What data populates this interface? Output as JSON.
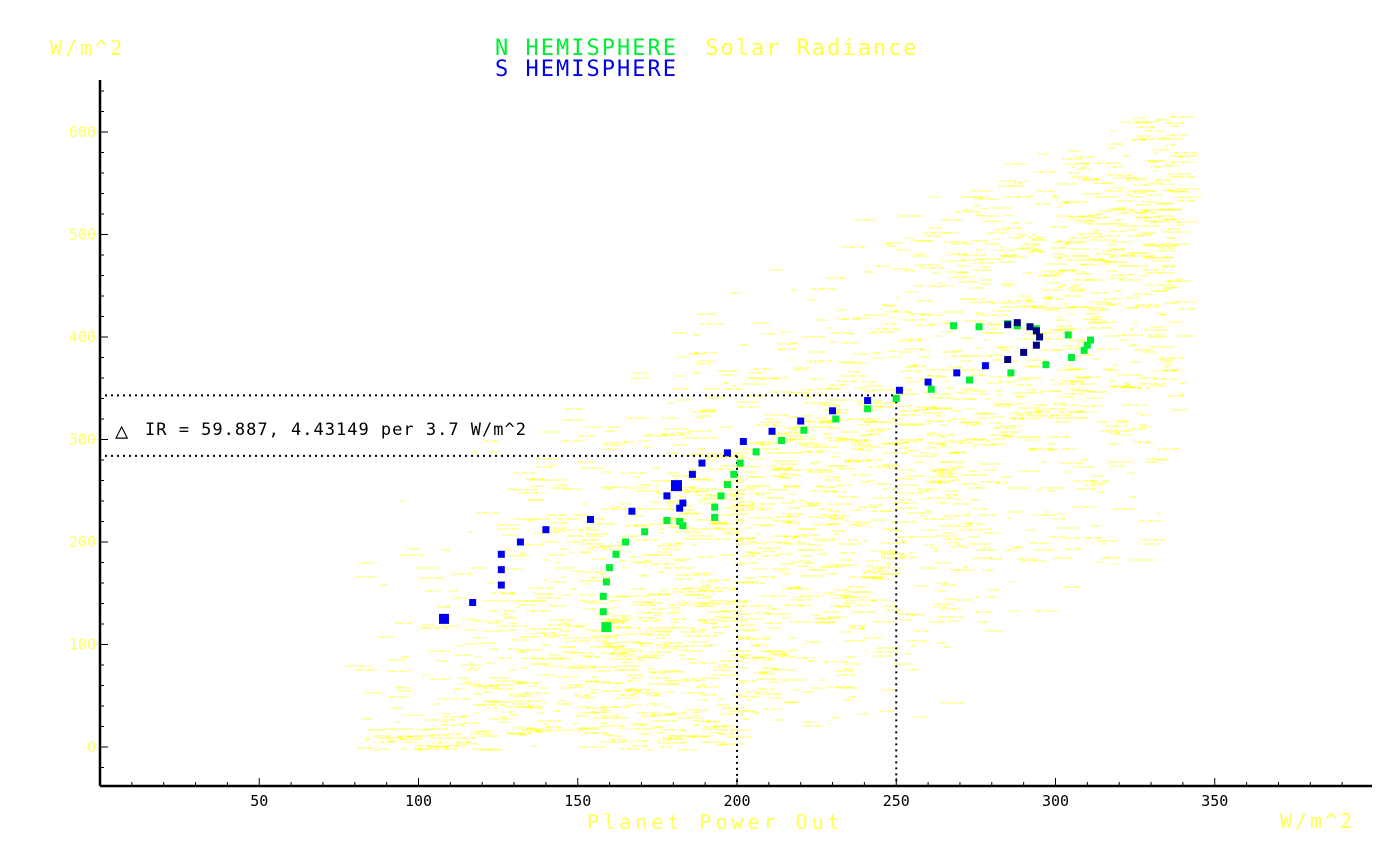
{
  "colors": {
    "n_series": "#00ee33",
    "s_series": "#0000ee",
    "s_overlap": "#000080",
    "solar": "#ffff00",
    "axis": "#000000",
    "yaxis_labels": "#ffff66",
    "xaxis_labels": "#000000",
    "text_yellow": "#ffff44"
  },
  "chart_data": {
    "type": "scatter",
    "title_lines": [
      [
        {
          "text": "N HEMISPHERE",
          "color": "n"
        },
        {
          "text": "Solar Radiance",
          "color": "solar"
        }
      ],
      [
        {
          "text": "S HEMISPHERE",
          "color": "s"
        }
      ]
    ],
    "xlabel": "Planet Power Out",
    "xunit": "W/m^2",
    "yunit": "W/m^2",
    "xlim": [
      0,
      400
    ],
    "ylim": [
      -38,
      655
    ],
    "xticks": [
      50,
      100,
      150,
      200,
      250,
      300,
      350
    ],
    "yticks": [
      0,
      100,
      200,
      300,
      400,
      500,
      600
    ],
    "grid": false,
    "series": [
      {
        "name": "N HEMISPHERE",
        "color": "n",
        "x": [
          159,
          158,
          158,
          159,
          160,
          162,
          165,
          171,
          178,
          183,
          182,
          193,
          193,
          195,
          197,
          199,
          201,
          206,
          214,
          221,
          231,
          241,
          250,
          261,
          273,
          268,
          276,
          285,
          288,
          294,
          304,
          297,
          305,
          309,
          310,
          311,
          286
        ],
        "y": [
          117,
          132,
          147,
          161,
          175,
          188,
          200,
          210,
          221,
          216,
          220,
          224,
          234,
          245,
          256,
          266,
          277,
          288,
          299,
          309,
          320,
          330,
          340,
          349,
          358,
          411,
          410,
          413,
          411,
          408,
          402,
          373,
          380,
          387,
          392,
          397,
          365
        ]
      },
      {
        "name": "S HEMISPHERE",
        "color": "s",
        "x": [
          108,
          117,
          126,
          126,
          126,
          132,
          140,
          154,
          167,
          178,
          182,
          183,
          181,
          186,
          189,
          197,
          202,
          211,
          220,
          230,
          241,
          251,
          260,
          269,
          278,
          285,
          290,
          294,
          295,
          294,
          292,
          288,
          285
        ],
        "y": [
          125,
          141,
          158,
          173,
          188,
          200,
          212,
          222,
          230,
          245,
          233,
          238,
          255,
          266,
          277,
          287,
          298,
          308,
          318,
          328,
          338,
          348,
          356,
          365,
          372,
          378,
          385,
          392,
          400,
          406,
          410,
          414,
          412
        ]
      }
    ],
    "annotation": {
      "symbol": "△",
      "text": "IR = 59.887, 4.43149 per 3.7 W/m^2",
      "h_lines_y": [
        284,
        343
      ],
      "v_lines_x": [
        200,
        250
      ]
    }
  }
}
